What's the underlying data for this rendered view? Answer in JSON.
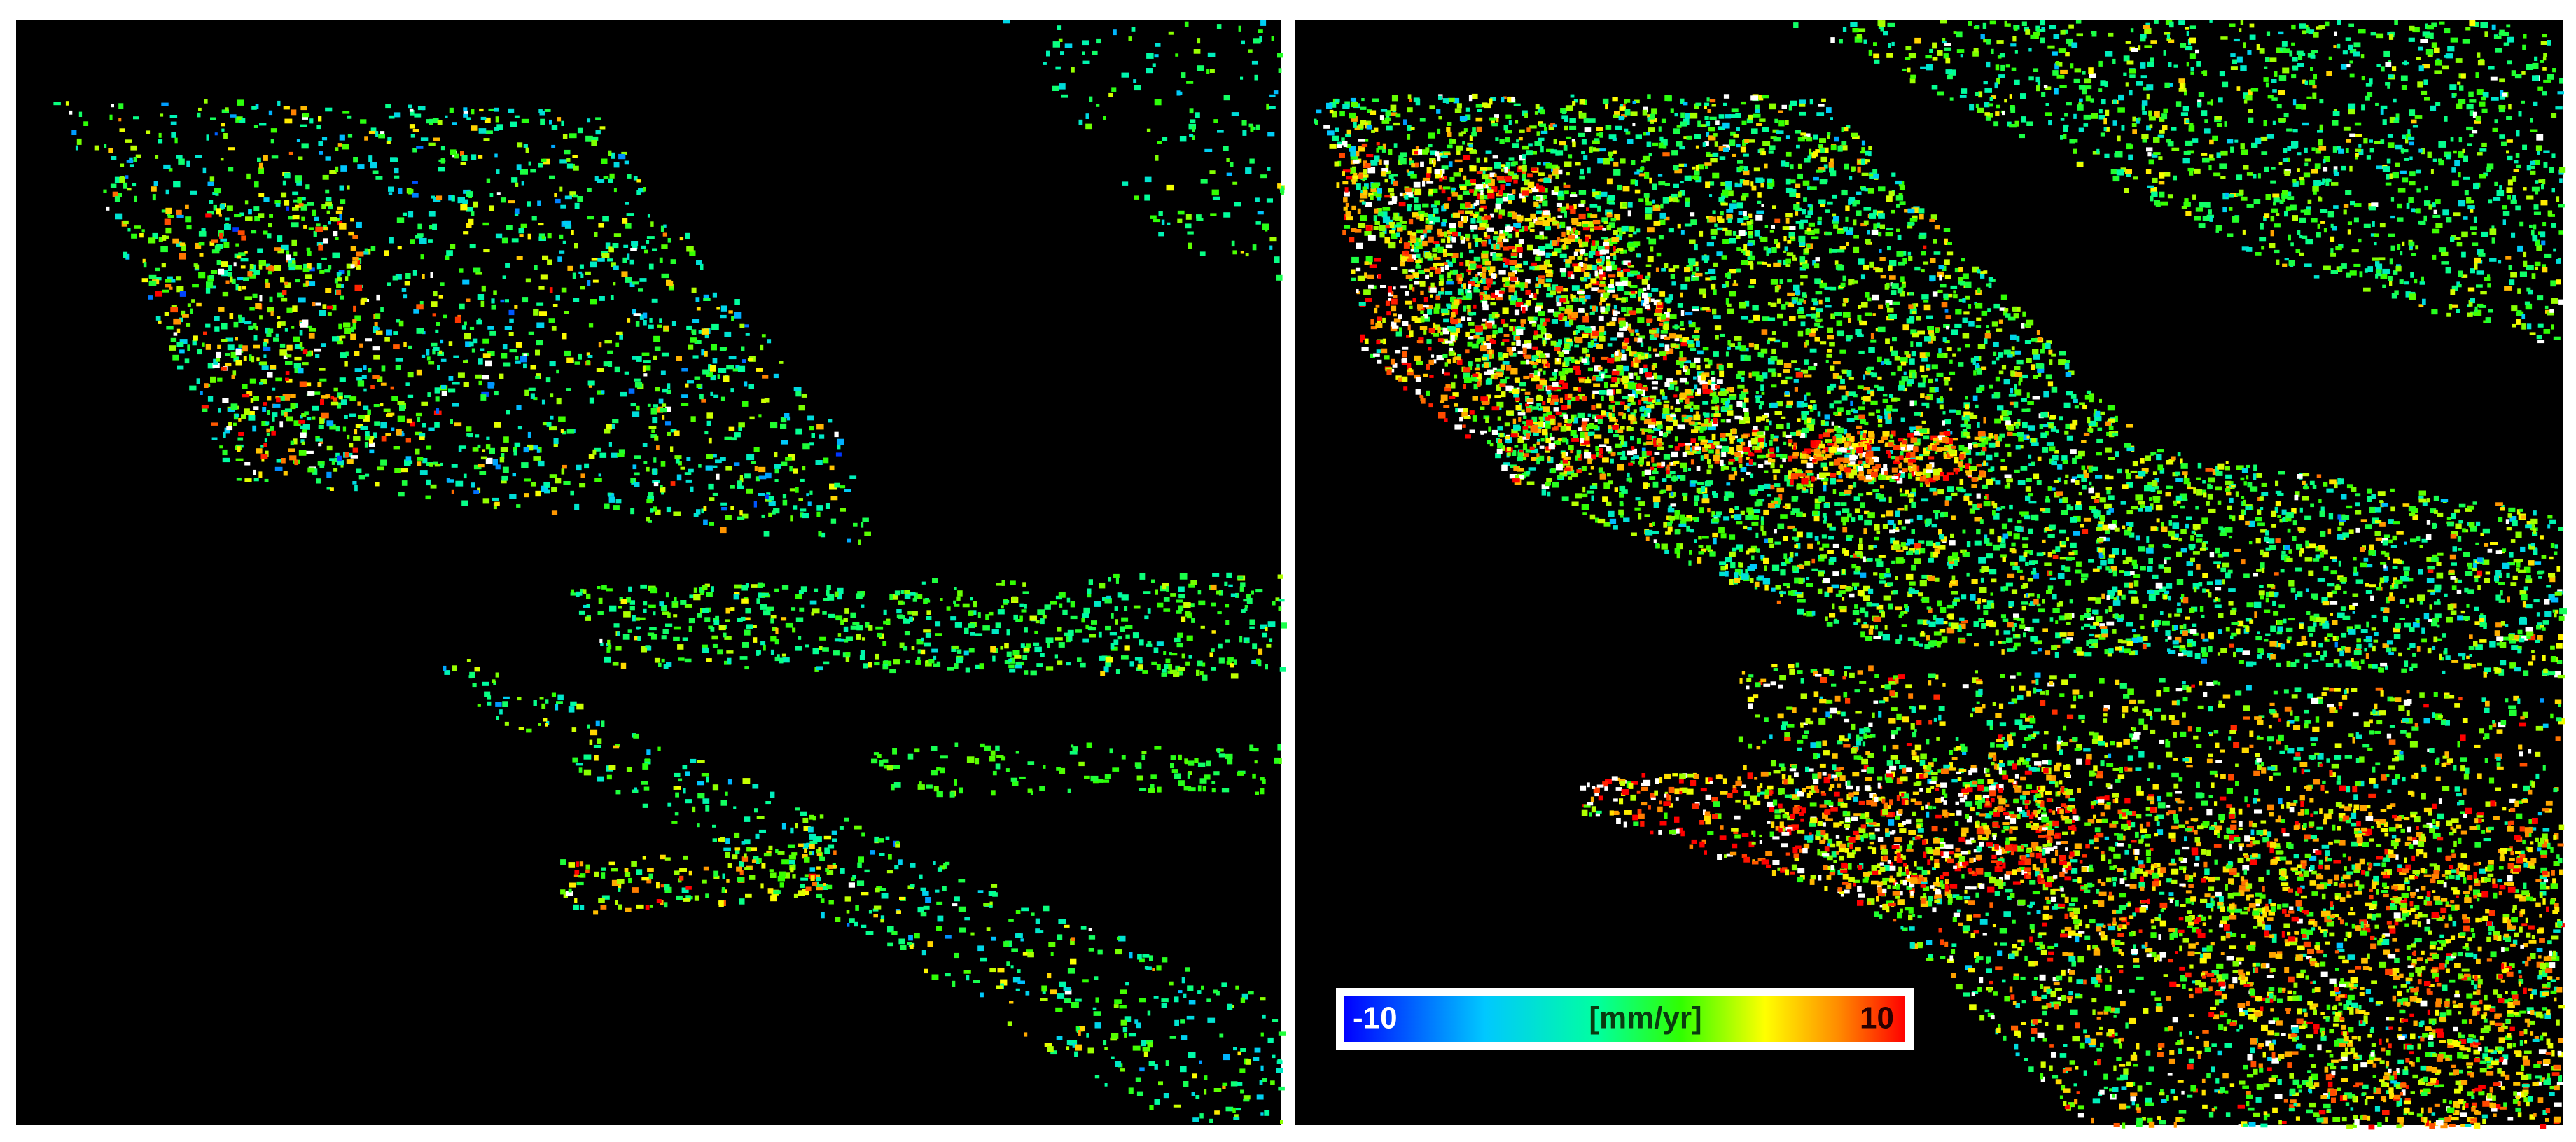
{
  "colorbar": {
    "min": -10,
    "label": "[mm/yr]",
    "max": 10
  }
}
